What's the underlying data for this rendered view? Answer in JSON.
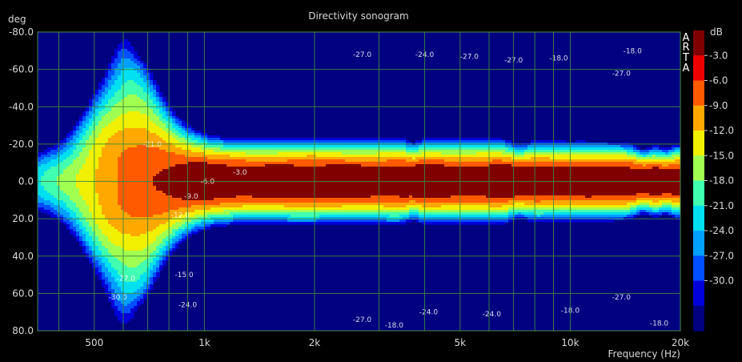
{
  "chart_data": {
    "type": "heatmap",
    "title": "Directivity sonogram",
    "ylabel": "deg",
    "xlabel": "Frequency (Hz)",
    "x_scale": "log",
    "xlim": [
      350,
      20000
    ],
    "ylim": [
      -80,
      80
    ],
    "y_ticks": [
      {
        "value": -80,
        "label": "-80.0"
      },
      {
        "value": -60,
        "label": "-60.0"
      },
      {
        "value": -40,
        "label": "-40.0"
      },
      {
        "value": -20,
        "label": "-20.0"
      },
      {
        "value": 0,
        "label": "0.0"
      },
      {
        "value": 20,
        "label": "20.0"
      },
      {
        "value": 40,
        "label": "40.0"
      },
      {
        "value": 60,
        "label": "60.0"
      },
      {
        "value": 80,
        "label": "80.0"
      }
    ],
    "x_ticks": [
      {
        "value": 500,
        "label": "500"
      },
      {
        "value": 1000,
        "label": "1k"
      },
      {
        "value": 2000,
        "label": "2k"
      },
      {
        "value": 5000,
        "label": "5k"
      },
      {
        "value": 10000,
        "label": "10k"
      },
      {
        "value": 20000,
        "label": "20k"
      }
    ],
    "x_minor_grid": [
      400,
      600,
      700,
      800,
      900,
      3000,
      4000,
      6000,
      7000,
      8000,
      9000
    ],
    "colorbar": {
      "unit": "dB",
      "min": -30,
      "max": 0,
      "ticks": [
        "-3.0",
        "-6.0",
        "-9.0",
        "-12.0",
        "-15.0",
        "-18.0",
        "-21.0",
        "-24.0",
        "-27.0",
        "-30.0"
      ],
      "colors": [
        "#000080",
        "#0000d8",
        "#0050ff",
        "#00a0ff",
        "#00e0f0",
        "#40ffb0",
        "#a0ff50",
        "#f0f000",
        "#ffa800",
        "#ff5a00",
        "#ee0000",
        "#800000"
      ]
    },
    "contour_levels": [
      -30,
      -27,
      -24,
      -21,
      -18,
      -15,
      -12,
      -9,
      -6,
      -3
    ],
    "contour_labels": [
      {
        "freq": 1250,
        "deg": -5,
        "text": "-3.0"
      },
      {
        "freq": 1020,
        "deg": 0,
        "text": "-6.0"
      },
      {
        "freq": 920,
        "deg": 8,
        "text": "-9.0"
      },
      {
        "freq": 860,
        "deg": 18,
        "text": "-12.0"
      },
      {
        "freq": 880,
        "deg": 50,
        "text": "-15.0"
      },
      {
        "freq": 720,
        "deg": -20,
        "text": "-21.0"
      },
      {
        "freq": 610,
        "deg": 52,
        "text": "-27.0"
      },
      {
        "freq": 580,
        "deg": 62,
        "text": "-30.0"
      },
      {
        "freq": 900,
        "deg": 66,
        "text": "-24.0"
      },
      {
        "freq": 2700,
        "deg": -68,
        "text": "-27.0"
      },
      {
        "freq": 4000,
        "deg": -68,
        "text": "-24.0"
      },
      {
        "freq": 5300,
        "deg": -67,
        "text": "-27.0"
      },
      {
        "freq": 7000,
        "deg": -65,
        "text": "-27.0"
      },
      {
        "freq": 9300,
        "deg": -66,
        "text": "-18.0"
      },
      {
        "freq": 14800,
        "deg": -70,
        "text": "-18.0"
      },
      {
        "freq": 13800,
        "deg": -58,
        "text": "-27.0"
      },
      {
        "freq": 13800,
        "deg": 62,
        "text": "-27.0"
      },
      {
        "freq": 4100,
        "deg": 70,
        "text": "-24.0"
      },
      {
        "freq": 6100,
        "deg": 71,
        "text": "-24.0"
      },
      {
        "freq": 2700,
        "deg": 74,
        "text": "-27.0"
      },
      {
        "freq": 3300,
        "deg": 77,
        "text": "-18.0"
      },
      {
        "freq": 10000,
        "deg": 69,
        "text": "-18.0"
      },
      {
        "freq": 17500,
        "deg": 76,
        "text": "-18.0"
      }
    ]
  },
  "watermark": "ARTA"
}
